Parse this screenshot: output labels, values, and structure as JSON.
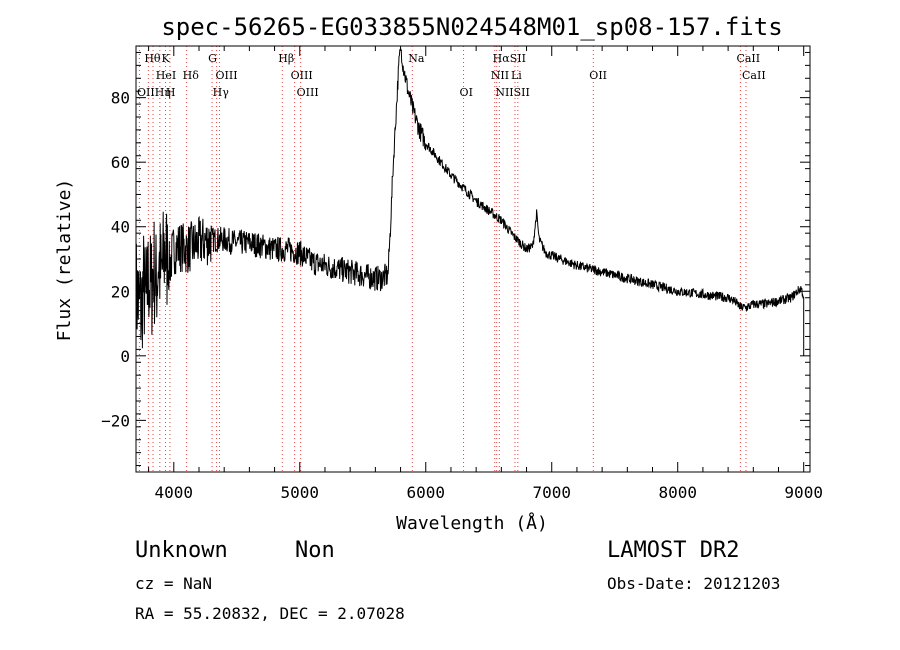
{
  "chart_data": {
    "type": "line",
    "title": "spec-56265-EG033855N024548M01_sp08-157.fits",
    "xlabel": "Wavelength (Å)",
    "ylabel": "Flux (relative)",
    "xlim": [
      3700,
      9050
    ],
    "ylim": [
      -36,
      96
    ],
    "xticks": [
      4000,
      5000,
      6000,
      7000,
      8000,
      9000
    ],
    "yticks": [
      -20,
      0,
      20,
      40,
      60,
      80
    ],
    "grid": false,
    "series": [
      {
        "x": [
          3700,
          3740,
          3760,
          3780,
          3800,
          3820,
          3840,
          3860,
          3880,
          3900,
          3930,
          3960,
          4000,
          4050,
          4100,
          4150,
          4200,
          4300,
          4400,
          4500,
          4600,
          4700,
          4800,
          4900,
          5000,
          5100,
          5200,
          5300,
          5400,
          5500,
          5600,
          5650,
          5700,
          5720,
          5740,
          5760,
          5780,
          5800,
          5820,
          5840,
          5860,
          5900,
          5950,
          6000,
          6100,
          6200,
          6300,
          6400,
          6500,
          6600,
          6700,
          6800,
          6850,
          6880,
          6900,
          6950,
          7000,
          7200,
          7400,
          7600,
          7800,
          8000,
          8200,
          8400,
          8450,
          8500,
          8550,
          8600,
          8700,
          8800,
          8900,
          8950,
          8980,
          9000,
          9000
        ],
        "y": [
          20,
          14,
          22,
          16,
          25,
          20,
          28,
          22,
          30,
          24,
          33,
          27,
          33,
          34,
          33,
          34,
          35,
          36,
          36,
          35,
          35,
          34,
          33,
          33,
          32,
          29,
          28,
          27,
          26,
          25,
          24,
          24,
          25,
          40,
          58,
          72,
          86,
          97,
          90,
          86,
          82,
          76,
          70,
          66,
          61,
          56,
          52,
          48,
          45,
          42,
          37,
          33,
          34,
          44,
          36,
          32,
          31,
          28,
          26,
          24,
          22,
          20,
          19,
          18,
          17,
          15,
          15,
          16,
          16,
          17,
          18,
          20,
          21,
          18,
          0
        ]
      }
    ],
    "line_ids": [
      {
        "name": "Hθ",
        "x": 3798,
        "row": 0
      },
      {
        "name": "K",
        "x": 3934,
        "row": 0
      },
      {
        "name": "G",
        "x": 4304,
        "row": 0
      },
      {
        "name": "Hβ",
        "x": 4861,
        "row": 0
      },
      {
        "name": "Na",
        "x": 5893,
        "row": 0
      },
      {
        "name": "HαSII",
        "x": 6563,
        "row": 0
      },
      {
        "name": "CaII",
        "x": 8498,
        "row": 0
      },
      {
        "name": "HeI",
        "x": 3889,
        "row": 1
      },
      {
        "name": "Hδ",
        "x": 4102,
        "row": 1
      },
      {
        "name": "OIII",
        "x": 4363,
        "row": 1
      },
      {
        "name": "OIII",
        "x": 4959,
        "row": 1
      },
      {
        "name": "NII",
        "x": 6548,
        "row": 1
      },
      {
        "name": "Li",
        "x": 6708,
        "row": 1
      },
      {
        "name": "OII",
        "x": 7330,
        "row": 1
      },
      {
        "name": "CaII",
        "x": 8542,
        "row": 1
      },
      {
        "name": "OIIHη",
        "x": 3727,
        "row": 2
      },
      {
        "name": "H",
        "x": 3969,
        "row": 2
      },
      {
        "name": "Hγ",
        "x": 4340,
        "row": 2
      },
      {
        "name": "OIII",
        "x": 5007,
        "row": 2
      },
      {
        "name": "OI",
        "x": 6300,
        "row": 2
      },
      {
        "name": "NIISII",
        "x": 6584,
        "row": 2
      }
    ],
    "marker_lines": [
      3727,
      3798,
      3835,
      3889,
      3934,
      3969,
      4102,
      4304,
      4340,
      4363,
      4861,
      4959,
      5007,
      5893,
      6300,
      6548,
      6563,
      6584,
      6708,
      6731,
      7330,
      8498,
      8542
    ]
  },
  "info": {
    "obj_class": "Unknown",
    "obj_subclass": "Non",
    "survey": "LAMOST DR2",
    "cz": "cz = NaN",
    "obs_date": "Obs-Date: 20121203",
    "radec": "RA =  55.20832, DEC =   2.07028"
  }
}
